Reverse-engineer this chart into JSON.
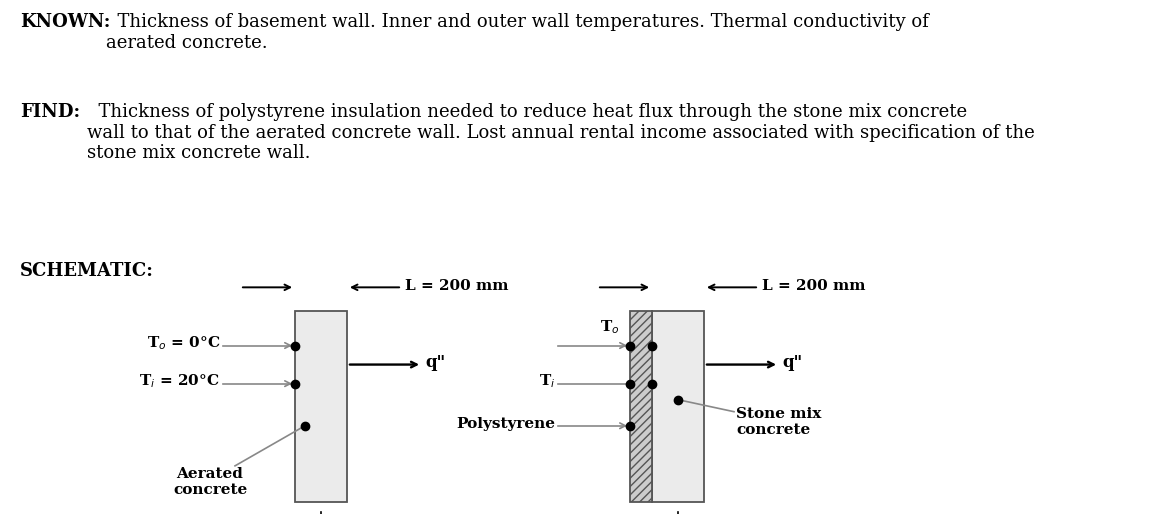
{
  "bg_color": "#ffffff",
  "text_color": "#000000",
  "gray_line": "#888888",
  "wall_face": "#ebebeb",
  "hatch_face": "#cccccc",
  "wall_edge": "#555555",
  "lw_line": 1.2,
  "lw_wall": 1.3,
  "dot_size": 6,
  "arrow_lw": 1.4,
  "fig_w": 11.55,
  "fig_h": 5.14,
  "dpi": 100,
  "known_bold": "KNOWN:",
  "known_rest": "  Thickness of basement wall. Inner and outer wall temperatures. Thermal conductivity of\naerated concrete.",
  "find_bold": "FIND:",
  "find_rest": "  Thickness of polystyrene insulation needed to reduce heat flux through the stone mix concrete\nwall to that of the aerated concrete wall. Lost annual rental income associated with specification of the\nstone mix concrete wall.",
  "schematic_label": "SCHEMATIC:",
  "fontsize_text": 13,
  "fontsize_label": 11,
  "fontsize_diag": 11
}
